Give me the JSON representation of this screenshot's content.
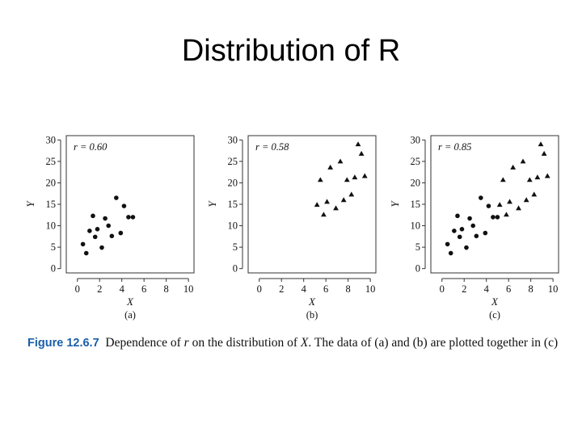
{
  "slide": {
    "title": "Distribution of R"
  },
  "caption": {
    "label": "Figure 12.6.7",
    "text_before_x": "Dependence of ",
    "r_symbol": "r",
    "text_mid": " on the distribution of ",
    "x_symbol": "X",
    "text_after": ". The data of (a) and (b) are plotted together in (c)"
  },
  "chart_data": [
    {
      "type": "scatter",
      "panel_label": "(a)",
      "annotation": "r = 0.60",
      "xlabel": "X",
      "ylabel": "Y",
      "xlim": [
        -1,
        10.5
      ],
      "ylim": [
        -1,
        31
      ],
      "xticks": [
        0,
        2,
        4,
        6,
        8,
        10
      ],
      "yticks": [
        0,
        5,
        10,
        15,
        20,
        25,
        30
      ],
      "marker": "circle",
      "color": "#111111",
      "series": [
        {
          "x": [
            0.5,
            0.8,
            1.1,
            1.4,
            1.6,
            1.8,
            2.2,
            2.5,
            2.8,
            3.1,
            3.5,
            3.9,
            4.2,
            4.6,
            5.0
          ],
          "y": [
            5.7,
            3.6,
            8.8,
            12.3,
            7.4,
            9.2,
            4.9,
            11.7,
            10.0,
            7.6,
            16.5,
            8.3,
            14.6,
            12.0,
            12.0
          ]
        }
      ]
    },
    {
      "type": "scatter",
      "panel_label": "(b)",
      "annotation": "r = 0.58",
      "xlabel": "X",
      "ylabel": "Y",
      "xlim": [
        -1,
        10.5
      ],
      "ylim": [
        -1,
        31
      ],
      "xticks": [
        0,
        2,
        4,
        6,
        8,
        10
      ],
      "yticks": [
        0,
        5,
        10,
        15,
        20,
        25,
        30
      ],
      "marker": "triangle",
      "color": "#111111",
      "series": [
        {
          "x": [
            5.2,
            5.5,
            5.8,
            6.1,
            6.4,
            6.9,
            7.3,
            7.6,
            7.9,
            8.3,
            8.6,
            8.9,
            9.2,
            9.5
          ],
          "y": [
            14.9,
            20.7,
            12.6,
            15.6,
            23.6,
            14.1,
            25.0,
            16.0,
            20.7,
            17.3,
            21.3,
            29.0,
            26.8,
            21.6
          ]
        }
      ]
    },
    {
      "type": "scatter",
      "panel_label": "(c)",
      "annotation": "r = 0.85",
      "xlabel": "X",
      "ylabel": "Y",
      "xlim": [
        -1,
        10.5
      ],
      "ylim": [
        -1,
        31
      ],
      "xticks": [
        0,
        2,
        4,
        6,
        8,
        10
      ],
      "yticks": [
        0,
        5,
        10,
        15,
        20,
        25,
        30
      ],
      "color": "#111111",
      "series": [
        {
          "marker": "circle",
          "x": [
            0.5,
            0.8,
            1.1,
            1.4,
            1.6,
            1.8,
            2.2,
            2.5,
            2.8,
            3.1,
            3.5,
            3.9,
            4.2,
            4.6,
            5.0
          ],
          "y": [
            5.7,
            3.6,
            8.8,
            12.3,
            7.4,
            9.2,
            4.9,
            11.7,
            10.0,
            7.6,
            16.5,
            8.3,
            14.6,
            12.0,
            12.0
          ]
        },
        {
          "marker": "triangle",
          "x": [
            5.2,
            5.5,
            5.8,
            6.1,
            6.4,
            6.9,
            7.3,
            7.6,
            7.9,
            8.3,
            8.6,
            8.9,
            9.2,
            9.5
          ],
          "y": [
            14.9,
            20.7,
            12.6,
            15.6,
            23.6,
            14.1,
            25.0,
            16.0,
            20.7,
            17.3,
            21.3,
            29.0,
            26.8,
            21.6
          ]
        }
      ]
    }
  ]
}
